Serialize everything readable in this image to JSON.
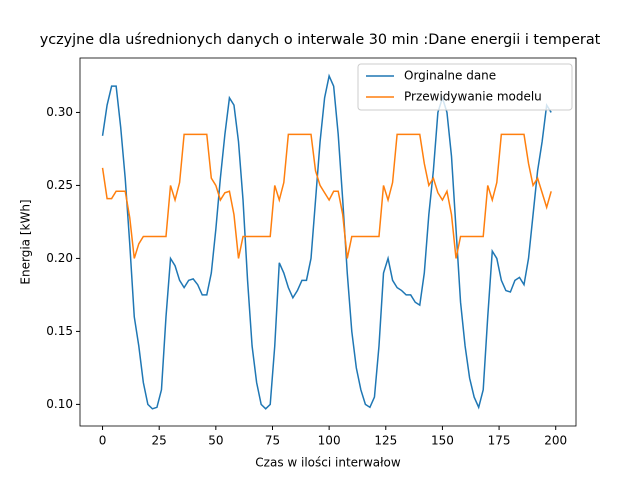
{
  "chart_data": {
    "type": "line",
    "title": "yczyjne dla uśrednionych danych o interwale 30 min :Dane energii i temperat",
    "x_label": "Czas w ilości interwałow",
    "y_label": "Energia [kWh]",
    "x": [
      0,
      2,
      4,
      6,
      8,
      10,
      12,
      14,
      16,
      18,
      20,
      22,
      24,
      26,
      28,
      30,
      32,
      34,
      36,
      38,
      40,
      42,
      44,
      46,
      48,
      50,
      52,
      54,
      56,
      58,
      60,
      62,
      64,
      66,
      68,
      70,
      72,
      74,
      76,
      78,
      80,
      82,
      84,
      86,
      88,
      90,
      92,
      94,
      96,
      98,
      100,
      102,
      104,
      106,
      108,
      110,
      112,
      114,
      116,
      118,
      120,
      122,
      124,
      126,
      128,
      130,
      132,
      134,
      136,
      138,
      140,
      142,
      144,
      146,
      148,
      150,
      152,
      154,
      156,
      158,
      160,
      162,
      164,
      166,
      168,
      170,
      172,
      174,
      176,
      178,
      180,
      182,
      184,
      186,
      188,
      190,
      192,
      194,
      196,
      198
    ],
    "series": [
      {
        "name": "Orginalne dane",
        "color": "#1f77b4",
        "values": [
          0.284,
          0.305,
          0.318,
          0.318,
          0.29,
          0.255,
          0.21,
          0.16,
          0.14,
          0.115,
          0.1,
          0.097,
          0.098,
          0.11,
          0.16,
          0.2,
          0.195,
          0.185,
          0.18,
          0.185,
          0.186,
          0.182,
          0.175,
          0.175,
          0.19,
          0.22,
          0.255,
          0.285,
          0.31,
          0.305,
          0.28,
          0.24,
          0.185,
          0.14,
          0.115,
          0.1,
          0.097,
          0.1,
          0.14,
          0.197,
          0.19,
          0.18,
          0.173,
          0.178,
          0.185,
          0.185,
          0.2,
          0.24,
          0.28,
          0.31,
          0.325,
          0.318,
          0.285,
          0.24,
          0.19,
          0.15,
          0.125,
          0.11,
          0.1,
          0.098,
          0.105,
          0.14,
          0.19,
          0.2,
          0.185,
          0.18,
          0.178,
          0.175,
          0.175,
          0.17,
          0.168,
          0.19,
          0.23,
          0.26,
          0.3,
          0.31,
          0.3,
          0.27,
          0.22,
          0.17,
          0.14,
          0.118,
          0.105,
          0.098,
          0.11,
          0.16,
          0.205,
          0.2,
          0.185,
          0.178,
          0.177,
          0.185,
          0.187,
          0.182,
          0.2,
          0.23,
          0.26,
          0.28,
          0.305,
          0.3
        ]
      },
      {
        "name": "Przewidywanie modelu",
        "color": "#ff7f0e",
        "values": [
          0.262,
          0.241,
          0.241,
          0.246,
          0.246,
          0.246,
          0.228,
          0.2,
          0.21,
          0.215,
          0.215,
          0.215,
          0.215,
          0.215,
          0.215,
          0.25,
          0.24,
          0.252,
          0.285,
          0.285,
          0.285,
          0.285,
          0.285,
          0.285,
          0.255,
          0.25,
          0.24,
          0.245,
          0.246,
          0.23,
          0.2,
          0.215,
          0.215,
          0.215,
          0.215,
          0.215,
          0.215,
          0.215,
          0.25,
          0.24,
          0.252,
          0.285,
          0.285,
          0.285,
          0.285,
          0.285,
          0.285,
          0.26,
          0.25,
          0.245,
          0.24,
          0.246,
          0.246,
          0.23,
          0.2,
          0.215,
          0.215,
          0.215,
          0.215,
          0.215,
          0.215,
          0.215,
          0.25,
          0.24,
          0.252,
          0.285,
          0.285,
          0.285,
          0.285,
          0.285,
          0.285,
          0.265,
          0.25,
          0.255,
          0.245,
          0.24,
          0.246,
          0.23,
          0.2,
          0.215,
          0.215,
          0.215,
          0.215,
          0.215,
          0.215,
          0.25,
          0.24,
          0.252,
          0.285,
          0.285,
          0.285,
          0.285,
          0.285,
          0.285,
          0.265,
          0.25,
          0.255,
          0.245,
          0.235,
          0.246
        ]
      }
    ],
    "xlim": [
      -9.95,
      208.95
    ],
    "ylim": [
      0.0852,
      0.3373
    ],
    "xticks": [
      0,
      25,
      50,
      75,
      100,
      125,
      150,
      175,
      200
    ],
    "yticks": [
      {
        "value": 0.1,
        "label": "0.10"
      },
      {
        "value": 0.15,
        "label": "0.15"
      },
      {
        "value": 0.2,
        "label": "0.20"
      },
      {
        "value": 0.25,
        "label": "0.25"
      },
      {
        "value": 0.3,
        "label": "0.30"
      }
    ],
    "legend": "upper right"
  }
}
